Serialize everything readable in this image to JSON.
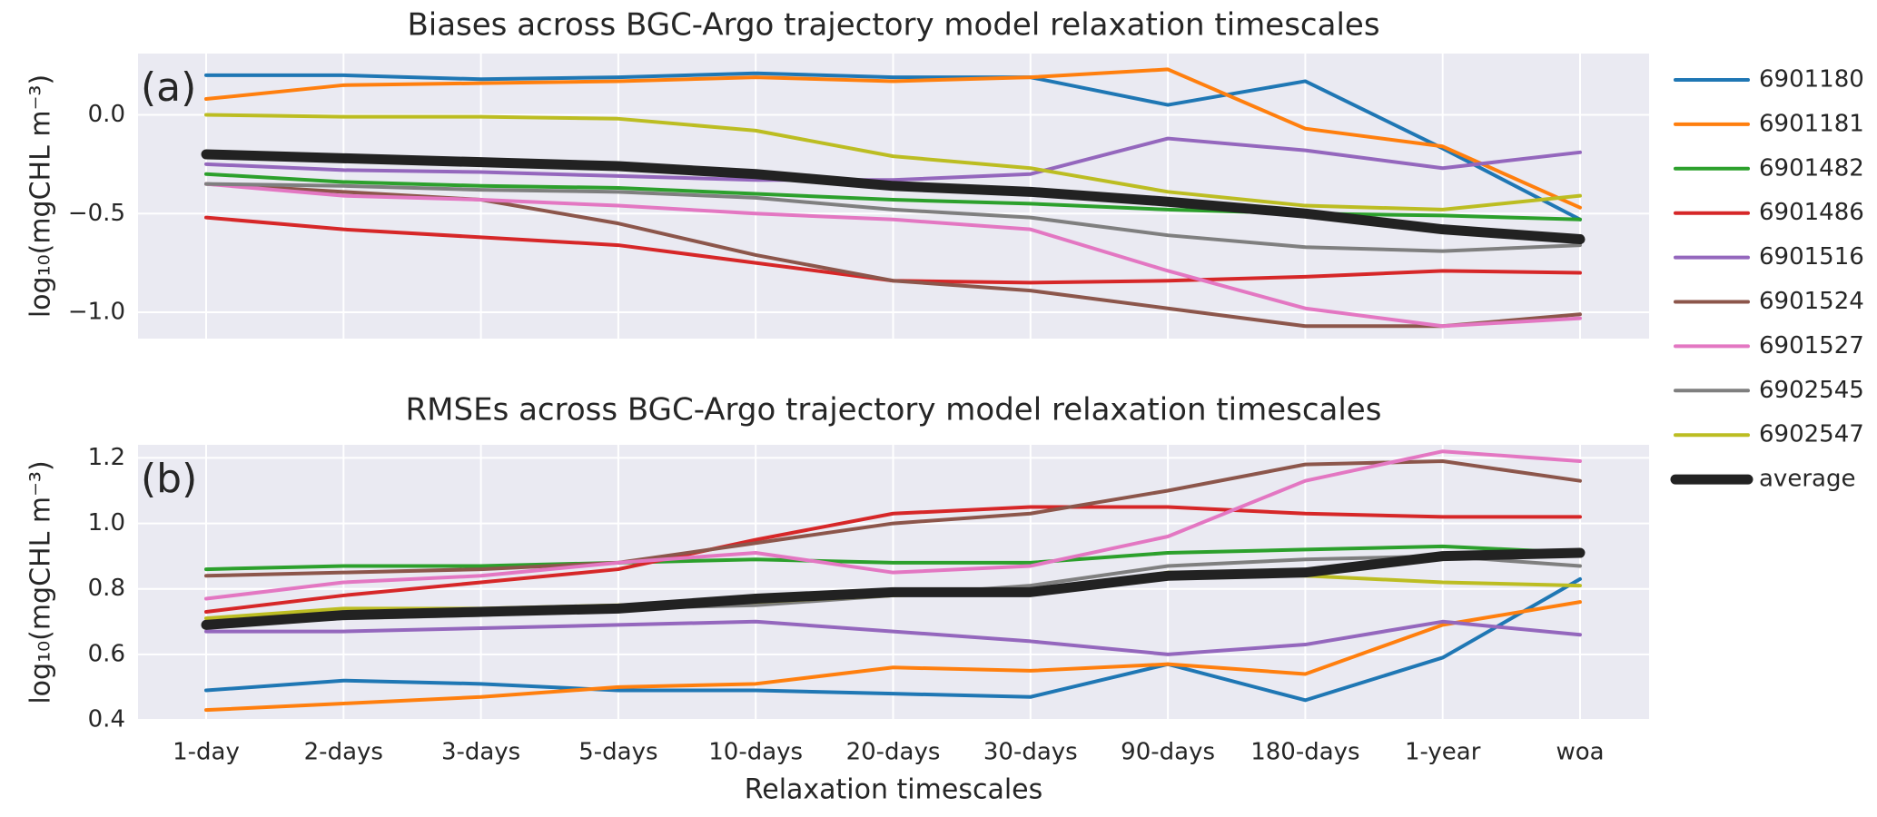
{
  "chart_data": [
    {
      "type": "line",
      "title": "Biases across BGC-Argo trajectory model relaxation timescales",
      "annotation": "(a)",
      "y_label": "log₁₀(mgCHL m⁻³)",
      "ylim": [
        -1.133,
        0.31
      ],
      "yticks": [
        {
          "value": 0,
          "label": "0.0"
        },
        {
          "value": -0.5,
          "label": "−0.5"
        },
        {
          "value": -1.0,
          "label": "−1.0"
        }
      ],
      "grid": true,
      "series": [
        {
          "name": "6901180",
          "color": "#1f77b4",
          "linewidth": 4,
          "values": [
            0.2,
            0.2,
            0.18,
            0.19,
            0.21,
            0.19,
            0.19,
            0.05,
            0.17,
            -0.17,
            -0.53
          ]
        },
        {
          "name": "6901181",
          "color": "#ff7f0e",
          "linewidth": 4,
          "values": [
            0.08,
            0.15,
            0.16,
            0.17,
            0.19,
            0.17,
            0.19,
            0.23,
            -0.07,
            -0.16,
            -0.47
          ]
        },
        {
          "name": "6901482",
          "color": "#2ca02c",
          "linewidth": 4,
          "values": [
            -0.3,
            -0.34,
            -0.36,
            -0.37,
            -0.4,
            -0.43,
            -0.45,
            -0.48,
            -0.5,
            -0.51,
            -0.53
          ]
        },
        {
          "name": "6901486",
          "color": "#d62728",
          "linewidth": 4,
          "values": [
            -0.52,
            -0.58,
            -0.62,
            -0.66,
            -0.75,
            -0.84,
            -0.85,
            -0.84,
            -0.82,
            -0.79,
            -0.8
          ]
        },
        {
          "name": "6901516",
          "color": "#9467bd",
          "linewidth": 4,
          "values": [
            -0.25,
            -0.28,
            -0.29,
            -0.31,
            -0.33,
            -0.33,
            -0.3,
            -0.12,
            -0.18,
            -0.27,
            -0.19
          ]
        },
        {
          "name": "6901524",
          "color": "#8c564b",
          "linewidth": 4,
          "values": [
            -0.35,
            -0.39,
            -0.43,
            -0.55,
            -0.71,
            -0.84,
            -0.89,
            -0.98,
            -1.07,
            -1.07,
            -1.01
          ]
        },
        {
          "name": "6901527",
          "color": "#e377c2",
          "linewidth": 4,
          "values": [
            -0.35,
            -0.41,
            -0.43,
            -0.46,
            -0.5,
            -0.53,
            -0.58,
            -0.79,
            -0.98,
            -1.07,
            -1.03
          ]
        },
        {
          "name": "6902545",
          "color": "#7f7f7f",
          "linewidth": 4,
          "values": [
            -0.35,
            -0.36,
            -0.38,
            -0.39,
            -0.42,
            -0.48,
            -0.52,
            -0.61,
            -0.67,
            -0.69,
            -0.66
          ]
        },
        {
          "name": "6902547",
          "color": "#bcbd22",
          "linewidth": 4,
          "values": [
            0.0,
            -0.01,
            -0.01,
            -0.02,
            -0.08,
            -0.21,
            -0.27,
            -0.39,
            -0.46,
            -0.48,
            -0.41
          ]
        },
        {
          "name": "average",
          "color": "#222222",
          "linewidth": 11,
          "values": [
            -0.2,
            -0.22,
            -0.24,
            -0.26,
            -0.3,
            -0.36,
            -0.39,
            -0.44,
            -0.5,
            -0.58,
            -0.63
          ]
        }
      ]
    },
    {
      "type": "line",
      "title": "RMSEs across BGC-Argo trajectory model relaxation timescales",
      "annotation": "(b)",
      "y_label": "log₁₀(mgCHL m⁻³)",
      "x_label": "Relaxation timescales",
      "categories": [
        "1-day",
        "2-days",
        "3-days",
        "5-days",
        "10-days",
        "20-days",
        "30-days",
        "90-days",
        "180-days",
        "1-year",
        "woa"
      ],
      "ylim": [
        0.4,
        1.24
      ],
      "yticks": [
        0.4,
        0.6,
        0.8,
        {
          "value": 1.0,
          "label": "1.0"
        },
        1.2
      ],
      "grid": true,
      "series": [
        {
          "color": "#1f77b4",
          "linewidth": 4,
          "values": [
            0.49,
            0.52,
            0.51,
            0.49,
            0.49,
            0.48,
            0.47,
            0.57,
            0.46,
            0.59,
            0.83
          ]
        },
        {
          "color": "#ff7f0e",
          "linewidth": 4,
          "values": [
            0.43,
            0.45,
            0.47,
            0.5,
            0.51,
            0.56,
            0.55,
            0.57,
            0.54,
            0.69,
            0.76
          ]
        },
        {
          "color": "#2ca02c",
          "linewidth": 4,
          "values": [
            0.86,
            0.87,
            0.87,
            0.88,
            0.89,
            0.88,
            0.88,
            0.91,
            0.92,
            0.93,
            0.91
          ]
        },
        {
          "color": "#d62728",
          "linewidth": 4,
          "values": [
            0.73,
            0.78,
            0.82,
            0.86,
            0.95,
            1.03,
            1.05,
            1.05,
            1.03,
            1.02,
            1.02
          ]
        },
        {
          "color": "#9467bd",
          "linewidth": 4,
          "values": [
            0.67,
            0.67,
            0.68,
            0.69,
            0.7,
            0.67,
            0.64,
            0.6,
            0.63,
            0.7,
            0.66
          ]
        },
        {
          "color": "#8c564b",
          "linewidth": 4,
          "values": [
            0.84,
            0.85,
            0.86,
            0.88,
            0.94,
            1.0,
            1.03,
            1.1,
            1.18,
            1.19,
            1.13
          ]
        },
        {
          "color": "#e377c2",
          "linewidth": 4,
          "values": [
            0.77,
            0.82,
            0.84,
            0.88,
            0.91,
            0.85,
            0.87,
            0.96,
            1.13,
            1.22,
            1.19
          ]
        },
        {
          "color": "#7f7f7f",
          "linewidth": 4,
          "values": [
            0.69,
            0.71,
            0.72,
            0.74,
            0.75,
            0.78,
            0.81,
            0.87,
            0.89,
            0.9,
            0.87
          ]
        },
        {
          "color": "#bcbd22",
          "linewidth": 4,
          "values": [
            0.71,
            0.74,
            0.74,
            0.75,
            0.76,
            0.78,
            0.79,
            0.85,
            0.84,
            0.82,
            0.81
          ]
        },
        {
          "color": "#222222",
          "linewidth": 11,
          "values": [
            0.69,
            0.72,
            0.73,
            0.74,
            0.77,
            0.79,
            0.79,
            0.84,
            0.85,
            0.9,
            0.91
          ]
        }
      ]
    }
  ]
}
